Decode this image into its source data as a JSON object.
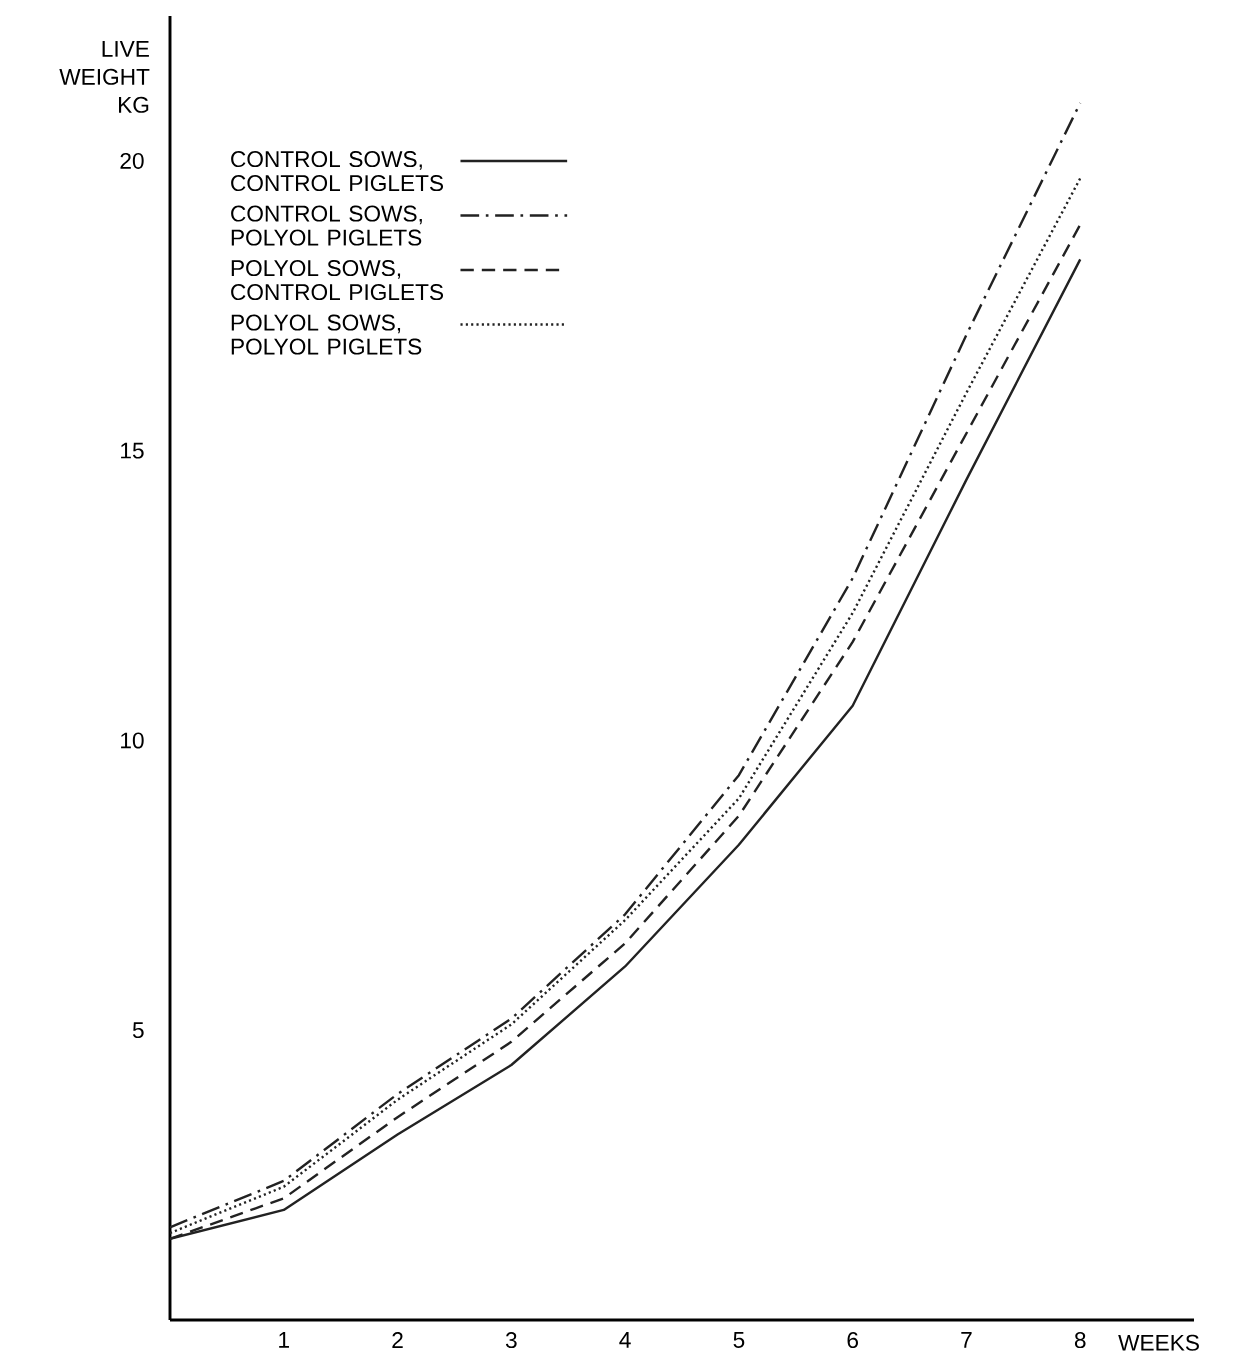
{
  "chart_data": {
    "type": "line",
    "xlabel": "WEEKS",
    "ylabel": "LIVE WEIGHT KG",
    "x": [
      0,
      1,
      2,
      3,
      4,
      5,
      6,
      7,
      8
    ],
    "xlim": [
      0,
      9
    ],
    "ylim": [
      0,
      22.5
    ],
    "xticks": [
      1,
      2,
      3,
      4,
      5,
      6,
      7,
      8
    ],
    "yticks": [
      5,
      10,
      15,
      20
    ],
    "grid": false,
    "legend": "top left",
    "series": [
      {
        "name": "CONTROL SOWS, CONTROL PIGLETS",
        "color": "#222222",
        "line_style": "solid",
        "values": [
          1.4,
          1.9,
          3.2,
          4.4,
          6.1,
          8.2,
          10.6,
          14.5,
          18.3
        ]
      },
      {
        "name": "CONTROL SOWS, POLYOL PIGLETS",
        "color": "#222222",
        "line_style": "dashdot",
        "values": [
          1.6,
          2.4,
          3.9,
          5.2,
          7.0,
          9.4,
          12.8,
          17.0,
          21.0
        ]
      },
      {
        "name": "POLYOL SOWS, CONTROL PIGLETS",
        "color": "#222222",
        "line_style": "dashed",
        "values": [
          1.4,
          2.1,
          3.5,
          4.8,
          6.5,
          8.7,
          11.7,
          15.3,
          18.9
        ]
      },
      {
        "name": "POLYOL SOWS, POLYOL PIGLETS",
        "color": "#222222",
        "line_style": "dotted",
        "values": [
          1.5,
          2.3,
          3.8,
          5.1,
          6.9,
          9.0,
          12.2,
          16.0,
          19.7
        ]
      }
    ]
  }
}
